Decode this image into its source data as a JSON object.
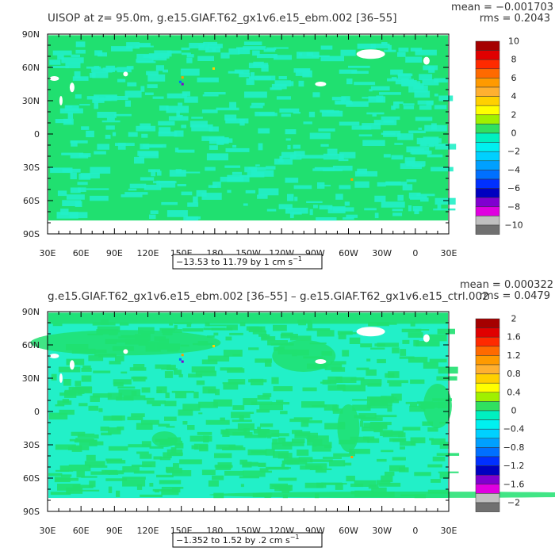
{
  "chart_data": [
    {
      "type": "heatmap",
      "title": "UISOP at z=  95.0m, g.e15.GIAF.T62_gx1v6.e15_ebm.002 [36–55]",
      "stats": {
        "mean": "mean = −0.001703",
        "rms": "rms = 0.2043"
      },
      "x_ticks": [
        "30E",
        "60E",
        "90E",
        "120E",
        "150E",
        "180",
        "150W",
        "120W",
        "90W",
        "60W",
        "30W",
        "0",
        "30E"
      ],
      "y_ticks": [
        "90N",
        "60N",
        "30N",
        "0",
        "30S",
        "60S",
        "90S"
      ],
      "colorbar": {
        "labels": [
          "10",
          "8",
          "6",
          "4",
          "2",
          "0",
          "−2",
          "−4",
          "−6",
          "−8",
          "−10"
        ],
        "colors": [
          "#a50000",
          "#e00000",
          "#ff2a00",
          "#ff6a00",
          "#ff9a00",
          "#ffb030",
          "#ffd000",
          "#ffff00",
          "#a0f000",
          "#30e060",
          "#00f0c0",
          "#00f0f0",
          "#00d0ff",
          "#00a0ff",
          "#0070ff",
          "#0030ff",
          "#0000c0",
          "#8000d0",
          "#e000e0",
          "#c0c0c0",
          "#707070"
        ]
      },
      "range_label": "−13.53 to 11.79 by 1 cm s",
      "range_unit_exp": "−1",
      "land_color": "#20e070",
      "ocean_color": "#22f0c8"
    },
    {
      "type": "heatmap",
      "title": "g.e15.GIAF.T62_gx1v6.e15_ebm.002 [36–55] – g.e15.GIAF.T62_gx1v6.e15_ctrl.002",
      "stats": {
        "mean": "mean = 0.000322",
        "rms": "rms = 0.0479"
      },
      "x_ticks": [
        "30E",
        "60E",
        "90E",
        "120E",
        "150E",
        "180",
        "150W",
        "120W",
        "90W",
        "60W",
        "30W",
        "0",
        "30E"
      ],
      "y_ticks": [
        "90N",
        "60N",
        "30N",
        "0",
        "30S",
        "60S",
        "90S"
      ],
      "colorbar": {
        "labels": [
          "2",
          "1.6",
          "1.2",
          "0.8",
          "0.4",
          "0",
          "−0.4",
          "−0.8",
          "−1.2",
          "−1.6",
          "−2"
        ],
        "colors": [
          "#a50000",
          "#e00000",
          "#ff2a00",
          "#ff6a00",
          "#ff9a00",
          "#ffb030",
          "#ffd000",
          "#ffff00",
          "#a0f000",
          "#30e060",
          "#00f0c0",
          "#00f0f0",
          "#00d0ff",
          "#00a0ff",
          "#0070ff",
          "#0030ff",
          "#0000c0",
          "#8000d0",
          "#e000e0",
          "#c0c0c0",
          "#707070"
        ]
      },
      "range_label": "−1.352 to 1.52 by .2 cm s",
      "range_unit_exp": "−1",
      "land_color": "#20e070",
      "ocean_color": "#22f0c8"
    }
  ]
}
